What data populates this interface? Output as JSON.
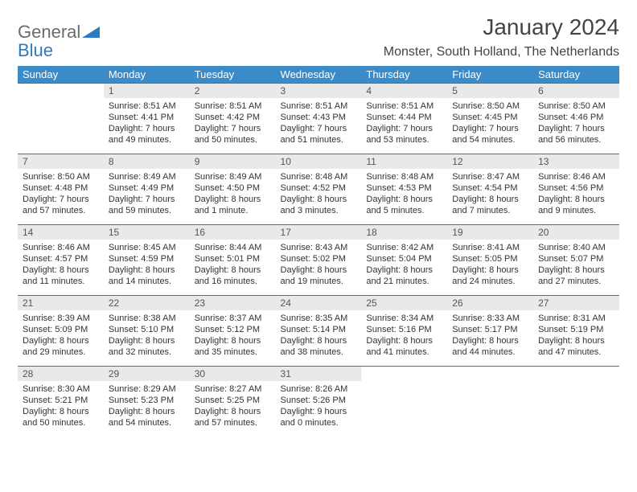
{
  "brand": {
    "part1": "General",
    "part2": "Blue",
    "color_gray": "#6b6b6b",
    "color_blue": "#2e7ac0"
  },
  "title": "January 2024",
  "location": "Monster, South Holland, The Netherlands",
  "header_bg": "#3b8bc9",
  "row_rule": "#3b78a8",
  "daynum_bg": "#e9e9e9",
  "weekdays": [
    "Sunday",
    "Monday",
    "Tuesday",
    "Wednesday",
    "Thursday",
    "Friday",
    "Saturday"
  ],
  "weeks": [
    [
      null,
      {
        "n": "1",
        "sr": "8:51 AM",
        "ss": "4:41 PM",
        "dl": "7 hours and 49 minutes."
      },
      {
        "n": "2",
        "sr": "8:51 AM",
        "ss": "4:42 PM",
        "dl": "7 hours and 50 minutes."
      },
      {
        "n": "3",
        "sr": "8:51 AM",
        "ss": "4:43 PM",
        "dl": "7 hours and 51 minutes."
      },
      {
        "n": "4",
        "sr": "8:51 AM",
        "ss": "4:44 PM",
        "dl": "7 hours and 53 minutes."
      },
      {
        "n": "5",
        "sr": "8:50 AM",
        "ss": "4:45 PM",
        "dl": "7 hours and 54 minutes."
      },
      {
        "n": "6",
        "sr": "8:50 AM",
        "ss": "4:46 PM",
        "dl": "7 hours and 56 minutes."
      }
    ],
    [
      {
        "n": "7",
        "sr": "8:50 AM",
        "ss": "4:48 PM",
        "dl": "7 hours and 57 minutes."
      },
      {
        "n": "8",
        "sr": "8:49 AM",
        "ss": "4:49 PM",
        "dl": "7 hours and 59 minutes."
      },
      {
        "n": "9",
        "sr": "8:49 AM",
        "ss": "4:50 PM",
        "dl": "8 hours and 1 minute."
      },
      {
        "n": "10",
        "sr": "8:48 AM",
        "ss": "4:52 PM",
        "dl": "8 hours and 3 minutes."
      },
      {
        "n": "11",
        "sr": "8:48 AM",
        "ss": "4:53 PM",
        "dl": "8 hours and 5 minutes."
      },
      {
        "n": "12",
        "sr": "8:47 AM",
        "ss": "4:54 PM",
        "dl": "8 hours and 7 minutes."
      },
      {
        "n": "13",
        "sr": "8:46 AM",
        "ss": "4:56 PM",
        "dl": "8 hours and 9 minutes."
      }
    ],
    [
      {
        "n": "14",
        "sr": "8:46 AM",
        "ss": "4:57 PM",
        "dl": "8 hours and 11 minutes."
      },
      {
        "n": "15",
        "sr": "8:45 AM",
        "ss": "4:59 PM",
        "dl": "8 hours and 14 minutes."
      },
      {
        "n": "16",
        "sr": "8:44 AM",
        "ss": "5:01 PM",
        "dl": "8 hours and 16 minutes."
      },
      {
        "n": "17",
        "sr": "8:43 AM",
        "ss": "5:02 PM",
        "dl": "8 hours and 19 minutes."
      },
      {
        "n": "18",
        "sr": "8:42 AM",
        "ss": "5:04 PM",
        "dl": "8 hours and 21 minutes."
      },
      {
        "n": "19",
        "sr": "8:41 AM",
        "ss": "5:05 PM",
        "dl": "8 hours and 24 minutes."
      },
      {
        "n": "20",
        "sr": "8:40 AM",
        "ss": "5:07 PM",
        "dl": "8 hours and 27 minutes."
      }
    ],
    [
      {
        "n": "21",
        "sr": "8:39 AM",
        "ss": "5:09 PM",
        "dl": "8 hours and 29 minutes."
      },
      {
        "n": "22",
        "sr": "8:38 AM",
        "ss": "5:10 PM",
        "dl": "8 hours and 32 minutes."
      },
      {
        "n": "23",
        "sr": "8:37 AM",
        "ss": "5:12 PM",
        "dl": "8 hours and 35 minutes."
      },
      {
        "n": "24",
        "sr": "8:35 AM",
        "ss": "5:14 PM",
        "dl": "8 hours and 38 minutes."
      },
      {
        "n": "25",
        "sr": "8:34 AM",
        "ss": "5:16 PM",
        "dl": "8 hours and 41 minutes."
      },
      {
        "n": "26",
        "sr": "8:33 AM",
        "ss": "5:17 PM",
        "dl": "8 hours and 44 minutes."
      },
      {
        "n": "27",
        "sr": "8:31 AM",
        "ss": "5:19 PM",
        "dl": "8 hours and 47 minutes."
      }
    ],
    [
      {
        "n": "28",
        "sr": "8:30 AM",
        "ss": "5:21 PM",
        "dl": "8 hours and 50 minutes."
      },
      {
        "n": "29",
        "sr": "8:29 AM",
        "ss": "5:23 PM",
        "dl": "8 hours and 54 minutes."
      },
      {
        "n": "30",
        "sr": "8:27 AM",
        "ss": "5:25 PM",
        "dl": "8 hours and 57 minutes."
      },
      {
        "n": "31",
        "sr": "8:26 AM",
        "ss": "5:26 PM",
        "dl": "9 hours and 0 minutes."
      },
      null,
      null,
      null
    ]
  ],
  "labels": {
    "sunrise": "Sunrise:",
    "sunset": "Sunset:",
    "daylight": "Daylight:"
  }
}
